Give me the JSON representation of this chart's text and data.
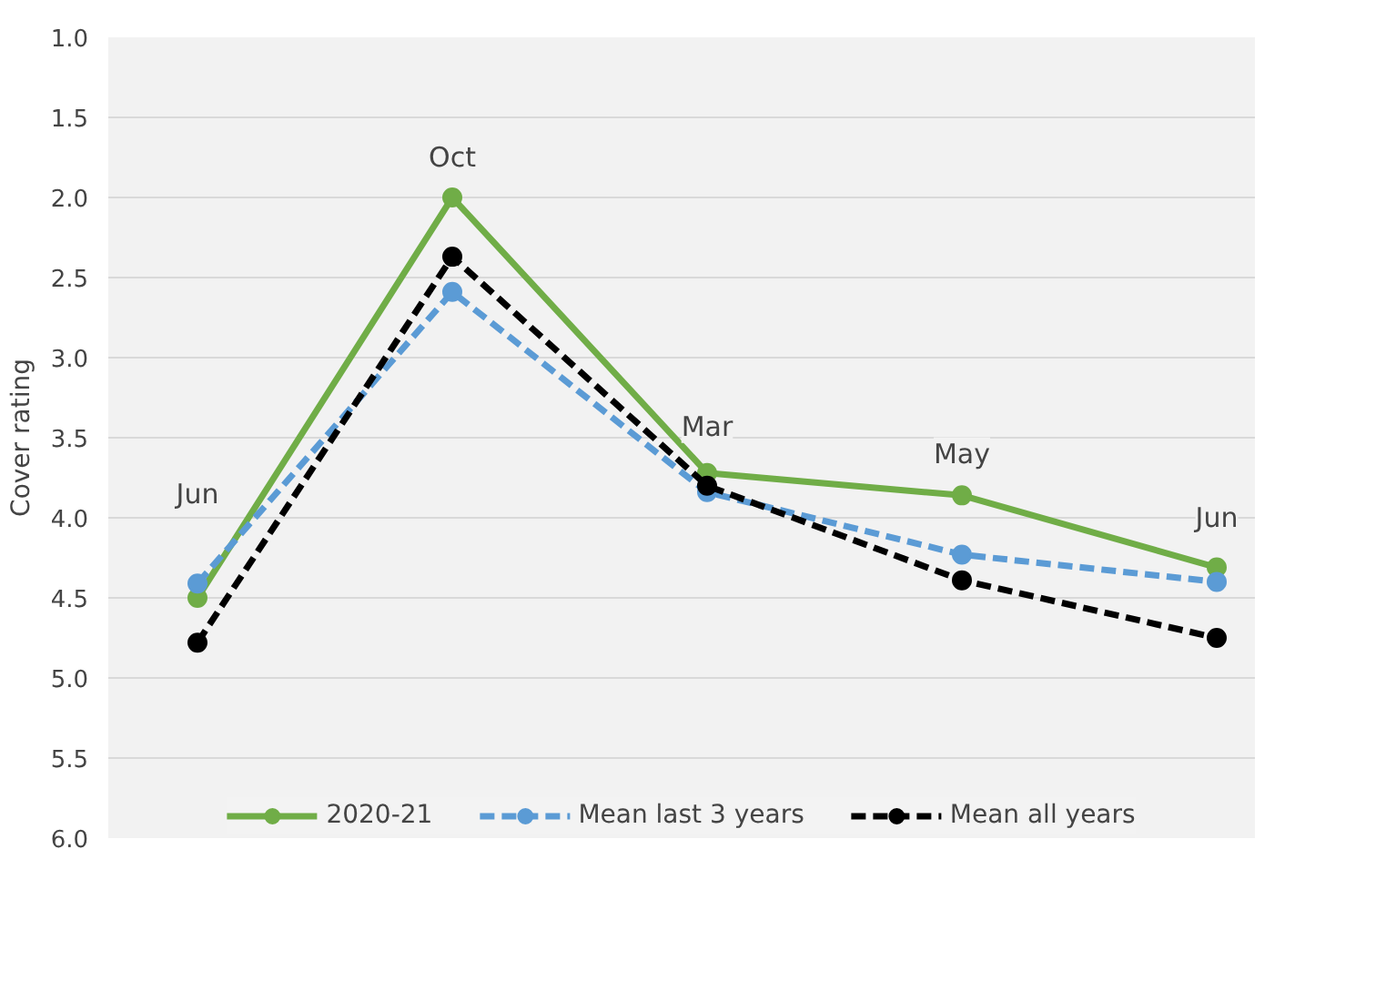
{
  "chart_data": {
    "type": "line",
    "ylabel": "Cover rating",
    "categories": [
      null,
      null,
      null,
      null,
      null
    ],
    "ylim": [
      6.0,
      1.0
    ],
    "yticks": [
      {
        "value": 1.0,
        "label": "1.0"
      },
      {
        "value": 1.5,
        "label": "1.5"
      },
      {
        "value": 2.0,
        "label": "2.0"
      },
      {
        "value": 2.5,
        "label": "2.5"
      },
      {
        "value": 3.0,
        "label": "3.0"
      },
      {
        "value": 3.5,
        "label": "3.5"
      },
      {
        "value": 4.0,
        "label": "4.0"
      },
      {
        "value": 4.5,
        "label": "4.5"
      },
      {
        "value": 5.0,
        "label": "5.0"
      },
      {
        "value": 5.5,
        "label": "5.5"
      },
      {
        "value": 6.0,
        "label": "6.0"
      }
    ],
    "tick_labels": "y",
    "grid": "y",
    "legend": "bottom",
    "marker": "circle",
    "series": [
      {
        "name": "2020-21",
        "color": "#70ad47",
        "line_style": "solid",
        "values": [
          4.5,
          2.0,
          3.72,
          3.86,
          4.31
        ]
      },
      {
        "name": "Mean last 3 years",
        "color": "#5b9bd5",
        "line_style": "dashed",
        "values": [
          4.41,
          2.59,
          3.84,
          4.23,
          4.4
        ]
      },
      {
        "name": "Mean all years",
        "color": "#000000",
        "line_style": "dashed",
        "values": [
          4.78,
          2.37,
          3.8,
          4.39,
          4.75
        ]
      }
    ],
    "annotations": [
      {
        "text": "Jun",
        "y": 3.85
      },
      {
        "text": "Oct",
        "y": 1.75
      },
      {
        "text": "Mar",
        "y": 3.43
      },
      {
        "text": "May",
        "y": 3.6
      },
      {
        "text": "Jun",
        "y": 4.0
      }
    ]
  }
}
